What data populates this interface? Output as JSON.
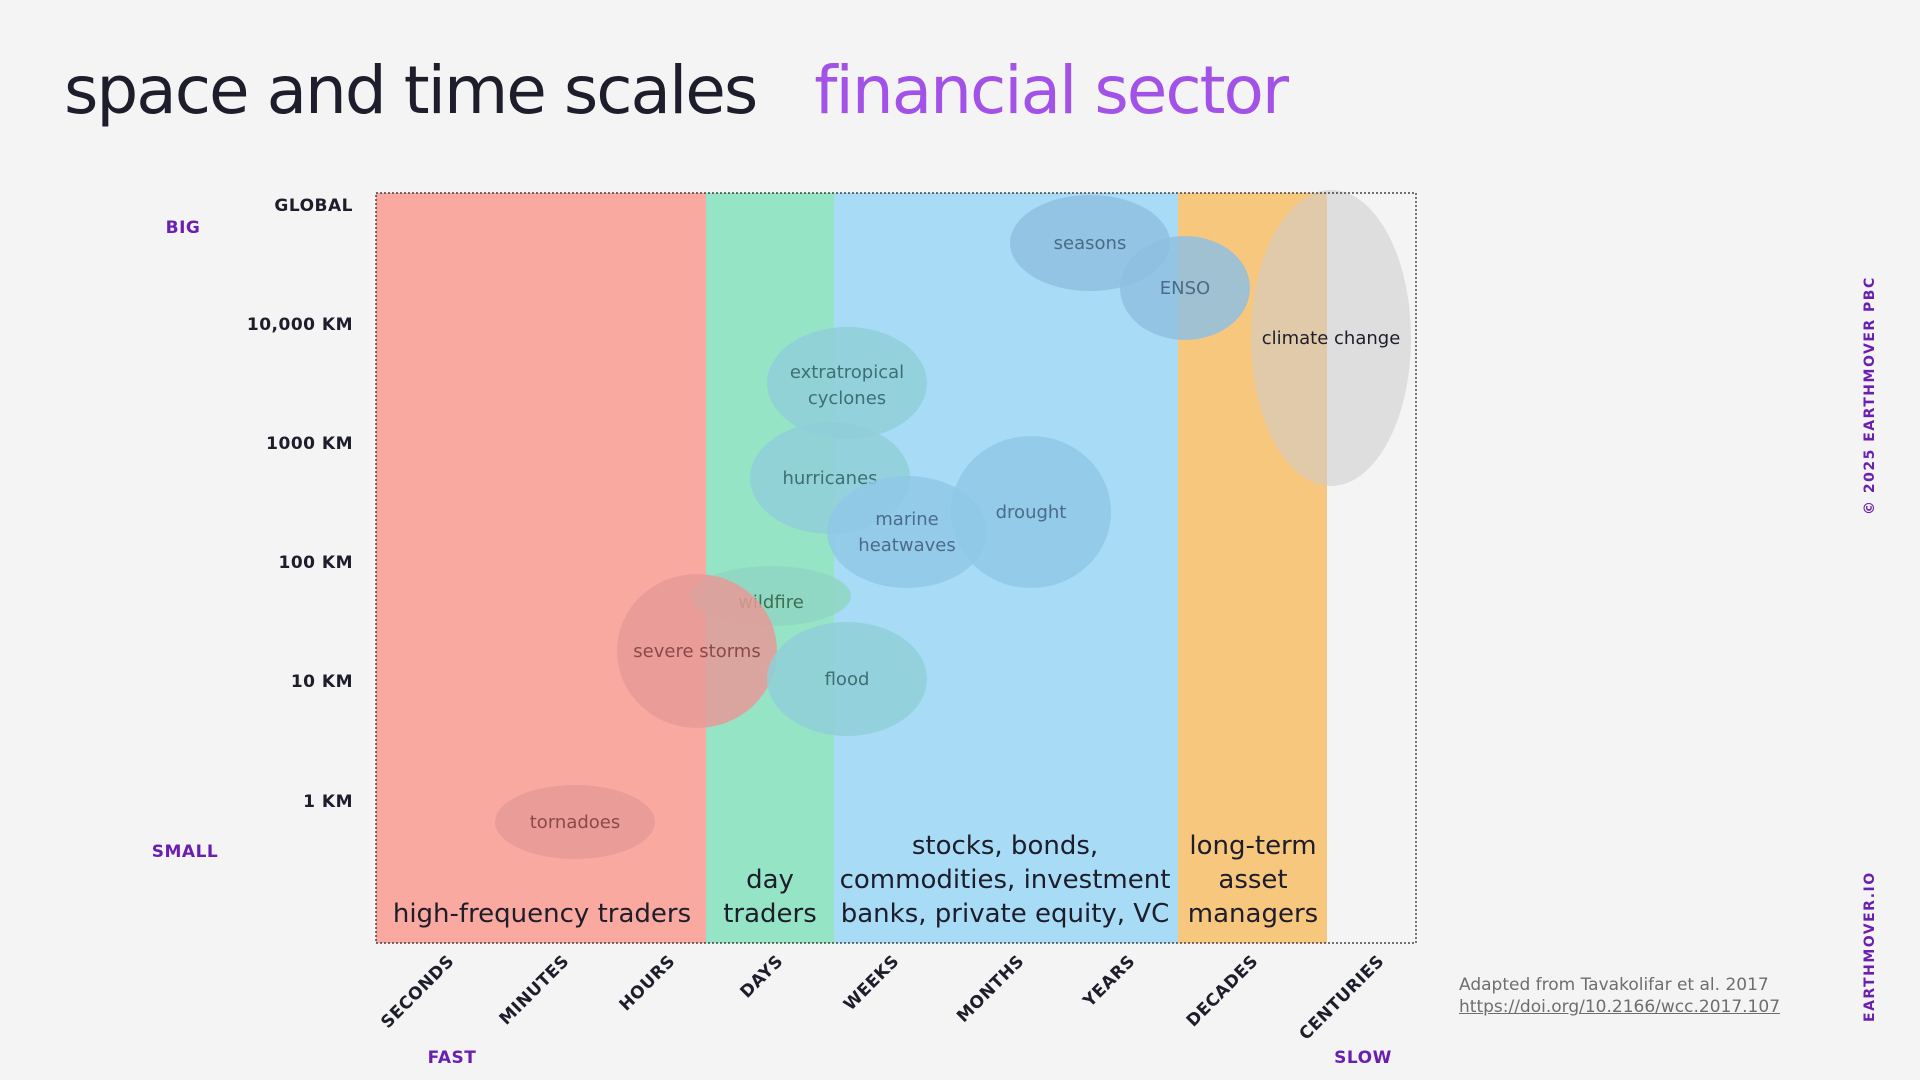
{
  "title": {
    "main": "space and time scales",
    "sub": "financial sector"
  },
  "y_axis": {
    "labels": [
      "GLOBAL",
      "10,000 KM",
      "1000 KM",
      "100 KM",
      "10 KM",
      "1 KM"
    ],
    "top_end": "BIG",
    "bottom_end": "SMALL"
  },
  "x_axis": {
    "labels": [
      "SECONDS",
      "MINUTES",
      "HOURS",
      "DAYS",
      "WEEKS",
      "MONTHS",
      "YEARS",
      "DECADES",
      "CENTURIES"
    ],
    "left_end": "FAST",
    "right_end": "SLOW"
  },
  "sectors": [
    {
      "lines": [
        "high-frequency traders"
      ],
      "color": "#f9a9a0"
    },
    {
      "lines": [
        "day",
        "traders"
      ],
      "color": "#96e4c6"
    },
    {
      "lines": [
        "stocks, bonds,",
        "commodities, investment",
        "banks, private equity, VC"
      ],
      "color": "#a8dbf5"
    },
    {
      "lines": [
        "long-term",
        "asset",
        "managers"
      ],
      "color": "#f8c77e"
    }
  ],
  "phenomena": [
    {
      "lines": [
        "seasons"
      ]
    },
    {
      "lines": [
        "ENSO"
      ]
    },
    {
      "lines": [
        "climate change"
      ]
    },
    {
      "lines": [
        "extratropical",
        "cyclones"
      ]
    },
    {
      "lines": [
        "hurricanes"
      ]
    },
    {
      "lines": [
        "marine",
        "heatwaves"
      ]
    },
    {
      "lines": [
        "drought"
      ]
    },
    {
      "lines": [
        "wildfire"
      ]
    },
    {
      "lines": [
        "severe storms"
      ]
    },
    {
      "lines": [
        "flood"
      ]
    },
    {
      "lines": [
        "tornadoes"
      ]
    }
  ],
  "credit": {
    "text": "Adapted from Tavakolifar et al. 2017",
    "link": "https://doi.org/10.2166/wcc.2017.107"
  },
  "side": {
    "copyright": "© 2025 EARTHMOVER PBC",
    "website": "EARTHMOVER.IO"
  },
  "colors": {
    "accent": "#a352e8",
    "brand": "#6b1fb1"
  }
}
